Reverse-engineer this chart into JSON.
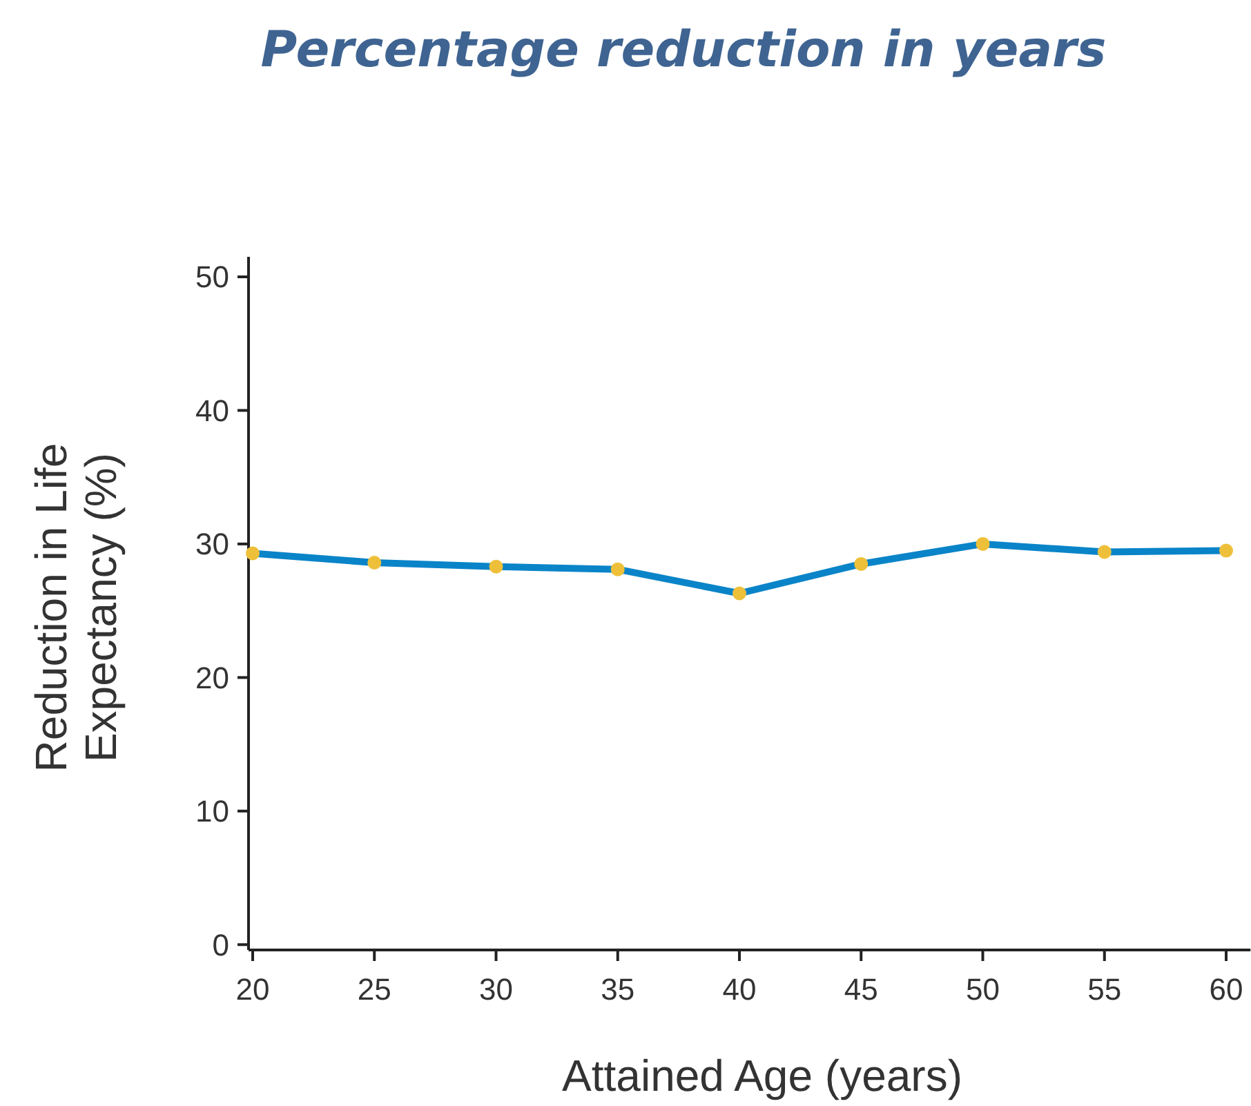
{
  "chart_data": {
    "type": "line",
    "title": "Percentage reduction in years",
    "xlabel": "Attained Age (years)",
    "ylabel": "Reduction in Life Expectancy (%)",
    "x": [
      20,
      25,
      30,
      35,
      40,
      45,
      50,
      55,
      60
    ],
    "series": [
      {
        "color": "#0a84c8",
        "values": [
          29.3,
          28.6,
          28.3,
          28.1,
          26.3,
          28.5,
          30.0,
          29.4,
          29.5
        ]
      }
    ],
    "xlim": [
      20,
      61
    ],
    "xticks": [
      20,
      25,
      30,
      35,
      40,
      45,
      50,
      55,
      60
    ],
    "ylim": [
      -0.4,
      51.5
    ],
    "yticks": [
      0,
      10,
      20,
      30,
      40,
      50
    ],
    "marker": "circle",
    "grid": false
  }
}
